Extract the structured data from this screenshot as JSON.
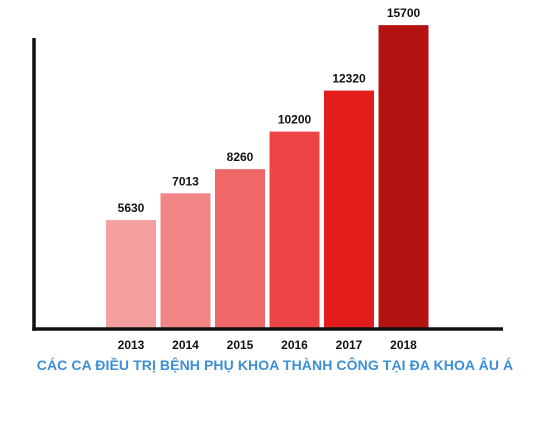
{
  "chart_data": {
    "type": "bar",
    "title": "CÁC CA ĐIỀU TRỊ BỆNH PHỤ KHOA THÀNH CÔNG TẠI ĐA KHOA ÂU Á",
    "categories": [
      "2013",
      "2014",
      "2015",
      "2016",
      "2017",
      "2018"
    ],
    "values": [
      5630,
      7013,
      8260,
      10200,
      12320,
      15700
    ],
    "data_labels": [
      "5630",
      "7013",
      "8260",
      "10200",
      "12320",
      "15700"
    ],
    "xlabel": "",
    "ylabel": "",
    "ylim": [
      0,
      17000
    ],
    "grid": false,
    "legend": "none",
    "colors": {
      "bars": [
        "#f4a0a0",
        "#f28585",
        "#f06767",
        "#ed4545",
        "#e31c1c",
        "#b41111"
      ],
      "axis": "#111111",
      "title": "#3b8fd6"
    }
  }
}
